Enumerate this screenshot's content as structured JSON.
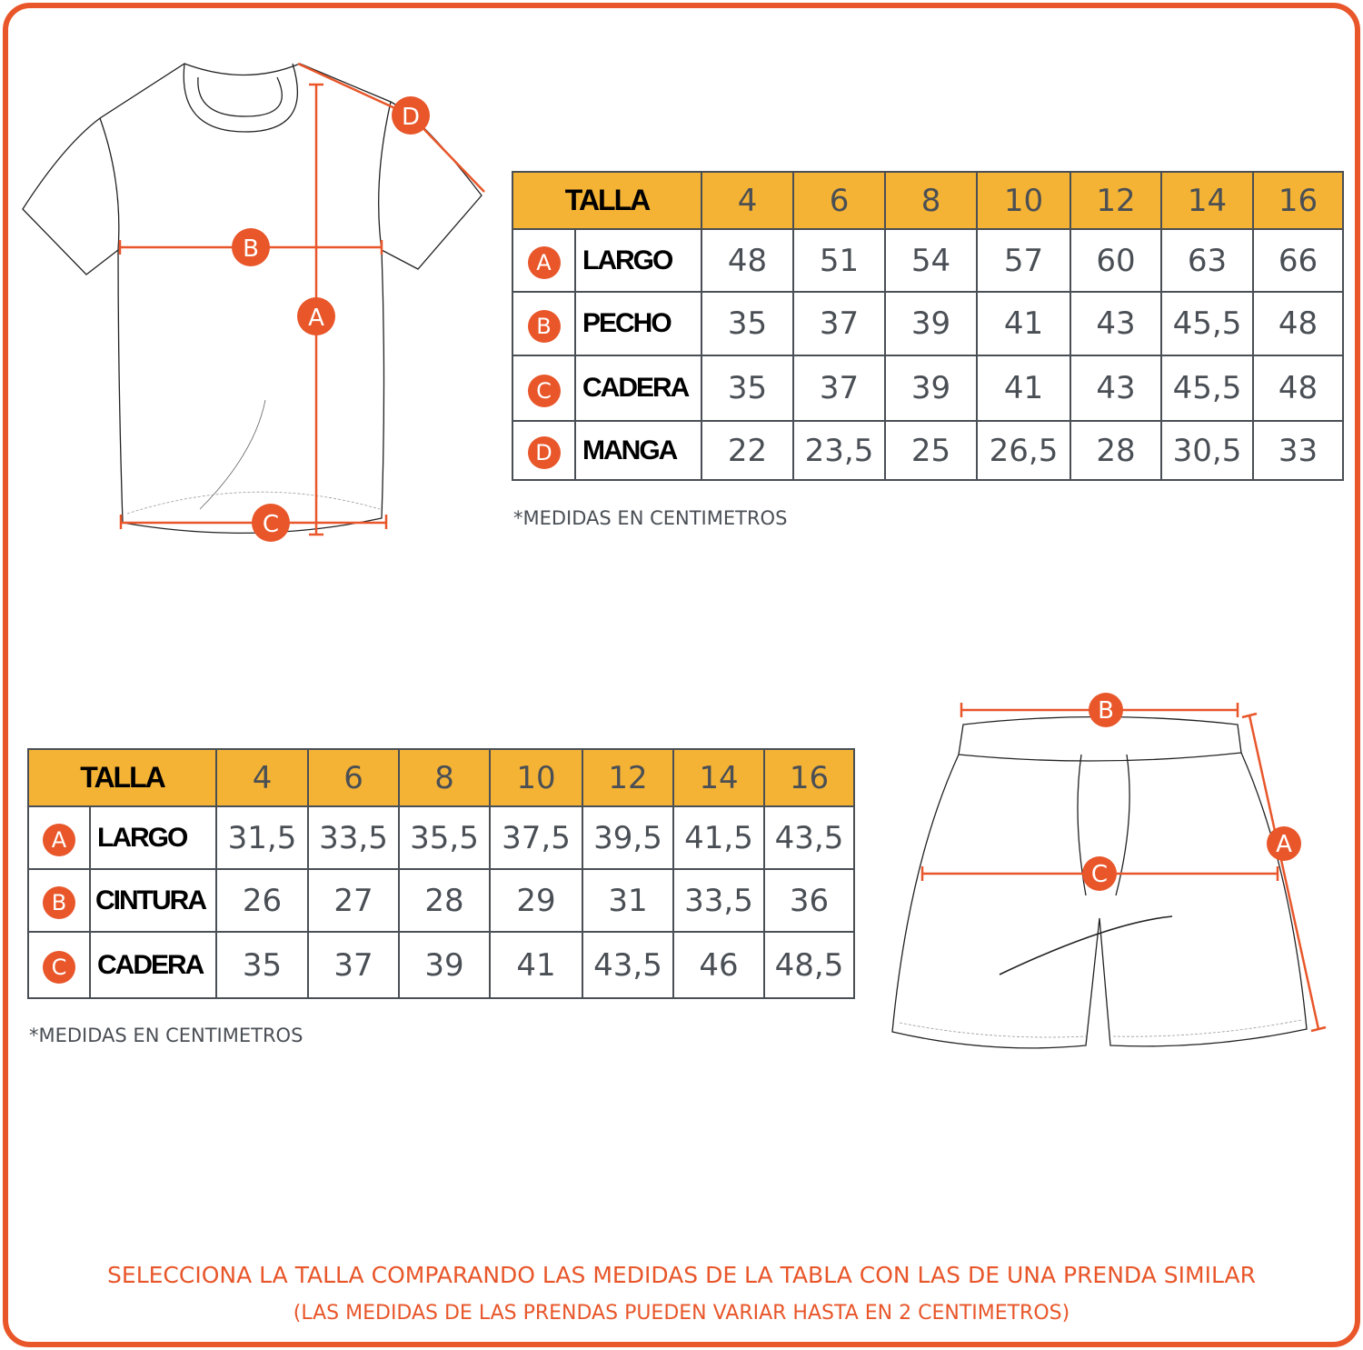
{
  "colors": {
    "accent": "#E8562A",
    "header": "#F4B335",
    "grid": "#4a4f55"
  },
  "shirt_table": {
    "header_label": "TALLA",
    "sizes": [
      "4",
      "6",
      "8",
      "10",
      "12",
      "14",
      "16"
    ],
    "rows": [
      {
        "key": "A",
        "label": "LARGO",
        "values": [
          "48",
          "51",
          "54",
          "57",
          "60",
          "63",
          "66"
        ]
      },
      {
        "key": "B",
        "label": "PECHO",
        "values": [
          "35",
          "37",
          "39",
          "41",
          "43",
          "45,5",
          "48"
        ]
      },
      {
        "key": "C",
        "label": "CADERA",
        "values": [
          "35",
          "37",
          "39",
          "41",
          "43",
          "45,5",
          "48"
        ]
      },
      {
        "key": "D",
        "label": "MANGA",
        "values": [
          "22",
          "23,5",
          "25",
          "26,5",
          "28",
          "30,5",
          "33"
        ]
      }
    ],
    "note": "*MEDIDAS EN CENTIMETROS"
  },
  "shorts_table": {
    "header_label": "TALLA",
    "sizes": [
      "4",
      "6",
      "8",
      "10",
      "12",
      "14",
      "16"
    ],
    "rows": [
      {
        "key": "A",
        "label": "LARGO",
        "values": [
          "31,5",
          "33,5",
          "35,5",
          "37,5",
          "39,5",
          "41,5",
          "43,5"
        ]
      },
      {
        "key": "B",
        "label": "CINTURA",
        "values": [
          "26",
          "27",
          "28",
          "29",
          "31",
          "33,5",
          "36"
        ]
      },
      {
        "key": "C",
        "label": "CADERA",
        "values": [
          "35",
          "37",
          "39",
          "41",
          "43,5",
          "46",
          "48,5"
        ]
      }
    ],
    "note": "*MEDIDAS EN CENTIMETROS"
  },
  "shirt_markers": [
    "A",
    "B",
    "C",
    "D"
  ],
  "shorts_markers": [
    "A",
    "B",
    "C"
  ],
  "footer": {
    "line1": "SELECCIONA LA TALLA COMPARANDO LAS MEDIDAS DE LA TABLA CON LAS DE UNA PRENDA SIMILAR",
    "line2": "(LAS MEDIDAS DE LAS PRENDAS PUEDEN VARIAR HASTA EN 2 CENTIMETROS)"
  }
}
